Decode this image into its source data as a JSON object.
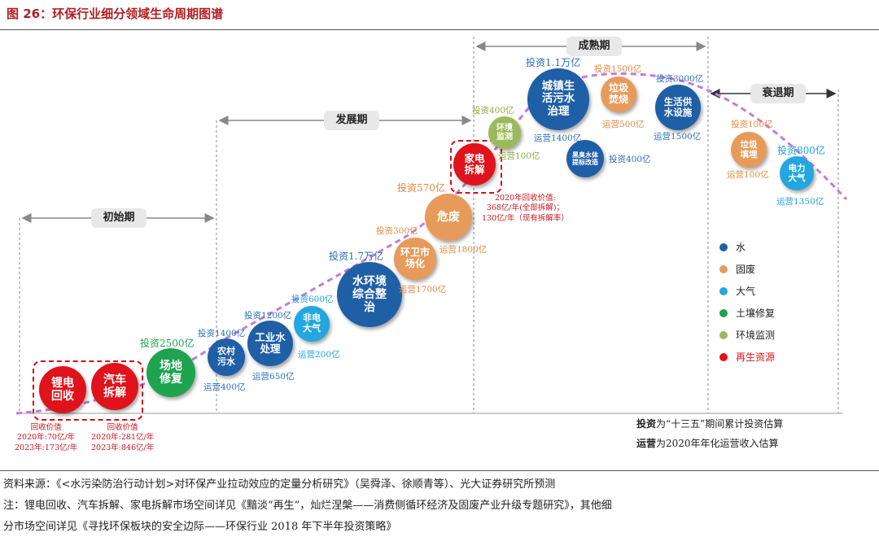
{
  "figure": {
    "title": "图 26：环保行业细分领域生命周期图谱"
  },
  "colors": {
    "water": "#1f5fa6",
    "solid": "#e79b5b",
    "air": "#23a7e0",
    "soil": "#1ea34f",
    "monitor": "#9bba59",
    "recycle": "#e0121b",
    "curve": "#c47be0"
  },
  "chart_data": {
    "type": "lifecycle-bubble",
    "title": "环保行业细分领域生命周期图谱",
    "phases": [
      "初始期",
      "发展期",
      "成熟期",
      "衰退期"
    ],
    "legend": [
      "水",
      "固废",
      "大气",
      "土壤修复",
      "环境监测",
      "再生资源"
    ],
    "segments": [
      {
        "name": "锂电回收",
        "label": "锂电\n回收",
        "category": "再生资源",
        "stage": "初始期",
        "notes": [
          "回收价值",
          "2020年:70亿/年",
          "2023年:173亿/年"
        ]
      },
      {
        "name": "汽车拆解",
        "label": "汽车\n拆解",
        "category": "再生资源",
        "stage": "初始期",
        "notes": [
          "回收价值",
          "2020年:281亿/年",
          "2023年:846亿/年"
        ]
      },
      {
        "name": "场地修复",
        "label": "场地\n修复",
        "category": "土壤修复",
        "stage": "初始期",
        "investment": "投资2500亿"
      },
      {
        "name": "农村污水",
        "label": "农村\n污水",
        "category": "水",
        "stage": "发展期",
        "investment": "投资1400亿",
        "operation": "运营400亿"
      },
      {
        "name": "工业水处理",
        "label": "工业水\n处理",
        "category": "水",
        "stage": "发展期",
        "investment": "投资1200亿",
        "operation": "运营650亿"
      },
      {
        "name": "非电大气",
        "label": "非电\n大气",
        "category": "大气",
        "stage": "发展期",
        "investment": "投资600亿",
        "operation": "运营200亿"
      },
      {
        "name": "水环境综合整治",
        "label": "水环境\n综合整\n治",
        "category": "水",
        "stage": "发展期",
        "investment": "投资1.7万亿"
      },
      {
        "name": "环卫市场化",
        "label": "环卫市\n场化",
        "category": "固废",
        "stage": "发展期",
        "investment": "投资300亿",
        "operation": "运营1700亿"
      },
      {
        "name": "危废",
        "label": "危废",
        "category": "固废",
        "stage": "发展期",
        "investment": "投资570亿",
        "operation": "运营1800亿"
      },
      {
        "name": "家电拆解",
        "label": "家电\n拆解",
        "category": "再生资源",
        "stage": "发展期",
        "notes": [
          "2020年回收价值:",
          "368亿/年(全部拆解)；",
          "130亿/年（现有拆解率）"
        ]
      },
      {
        "name": "环境监测",
        "label": "环境\n监测",
        "category": "环境监测",
        "stage": "成熟期",
        "investment": "投资400亿",
        "operation": "运营100亿"
      },
      {
        "name": "城镇生活污水治理",
        "label": "城镇生\n活污水\n治理",
        "category": "水",
        "stage": "成熟期",
        "investment": "投资1.1万亿",
        "operation": "运营1400亿"
      },
      {
        "name": "黑臭水体提标改造",
        "label": "黑臭水体\n提标改造",
        "category": "水",
        "stage": "成熟期",
        "investment": "投资400亿"
      },
      {
        "name": "垃圾焚烧",
        "label": "垃圾\n焚烧",
        "category": "固废",
        "stage": "成熟期",
        "investment": "投资1500亿",
        "operation": "运营500亿"
      },
      {
        "name": "生活供水设施",
        "label": "生活供\n水设施",
        "category": "水",
        "stage": "成熟期",
        "investment": "投资3000亿",
        "operation": "运营1500亿"
      },
      {
        "name": "垃圾填埋",
        "label": "垃圾\n填埋",
        "category": "固废",
        "stage": "衰退期",
        "investment": "投资100亿",
        "operation": "运营100亿"
      },
      {
        "name": "电力大气",
        "label": "电力\n大气",
        "category": "大气",
        "stage": "衰退期",
        "investment": "投资800亿",
        "operation": "运营1350亿"
      }
    ],
    "annotations": [
      {
        "term": "投资",
        "text": "为“十三五”期间累计投资估算"
      },
      {
        "term": "运营",
        "text": "为2020年年化运营收入估算"
      }
    ]
  },
  "footer": {
    "source": "资料来源：《<水污染防治行动计划>对环保产业拉动效应的定量分析研究》（吴舜泽、徐顺青等）、光大证券研究所预测",
    "note_line1": "注：锂电回收、汽车拆解、家电拆解市场空间详见《黯淡“再生”，灿烂涅槃——消费侧循环经济及固废产业升级专题研究》，其他细",
    "note_line2": "分市场空间详见《寻找环保板块的安全边际——环保行业 2018 年下半年投资策略》"
  }
}
